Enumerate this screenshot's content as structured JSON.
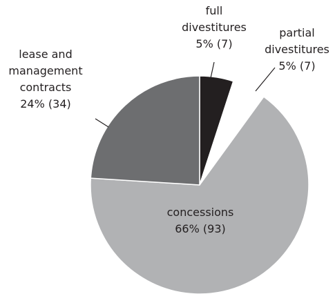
{
  "chart_data": {
    "type": "pie",
    "categories": [
      "full divestitures",
      "partial divestitures",
      "concessions",
      "lease and management contracts"
    ],
    "values": [
      5,
      5,
      66,
      24
    ],
    "value_labels": [
      "5% (7)",
      "5% (7)",
      "66% (93)",
      "24% (34)"
    ],
    "colors": [
      "#231f20",
      "#ffffff",
      "#b1b2b4",
      "#6d6e70"
    ]
  }
}
